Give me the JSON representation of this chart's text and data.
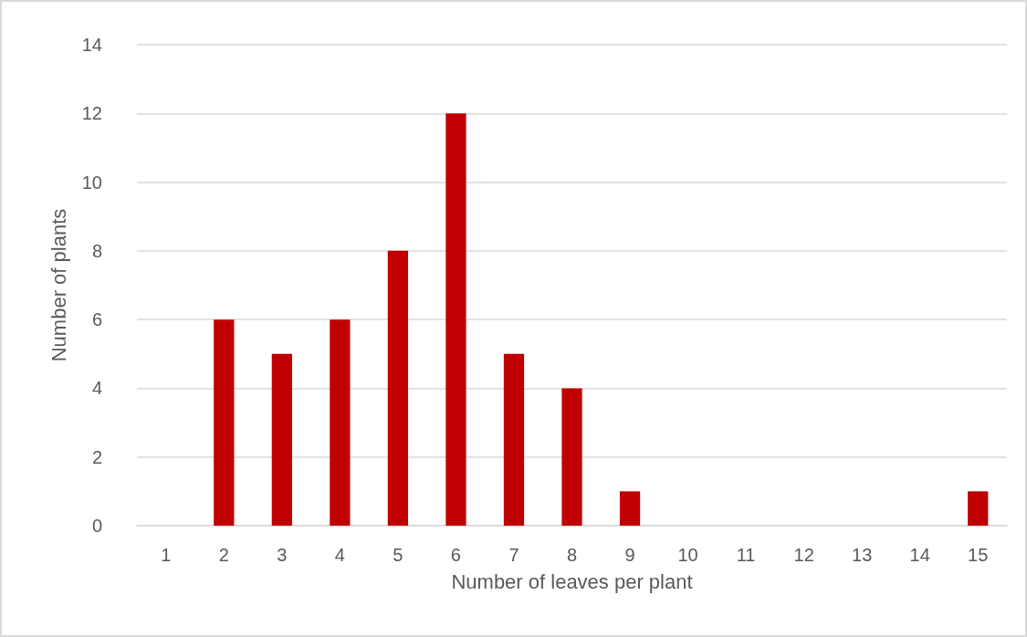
{
  "chart_data": {
    "type": "bar",
    "xlabel": "Number of leaves per plant",
    "ylabel": "Number of plants",
    "categories": [
      "1",
      "2",
      "3",
      "4",
      "5",
      "6",
      "7",
      "8",
      "9",
      "10",
      "11",
      "12",
      "13",
      "14",
      "15"
    ],
    "values": [
      0,
      6,
      5,
      6,
      8,
      12,
      5,
      4,
      1,
      0,
      0,
      0,
      0,
      0,
      1
    ],
    "color": "#c00000",
    "ylim": [
      0,
      14
    ],
    "yticks": [
      0,
      2,
      4,
      6,
      8,
      10,
      12,
      14
    ],
    "grid": "y"
  }
}
